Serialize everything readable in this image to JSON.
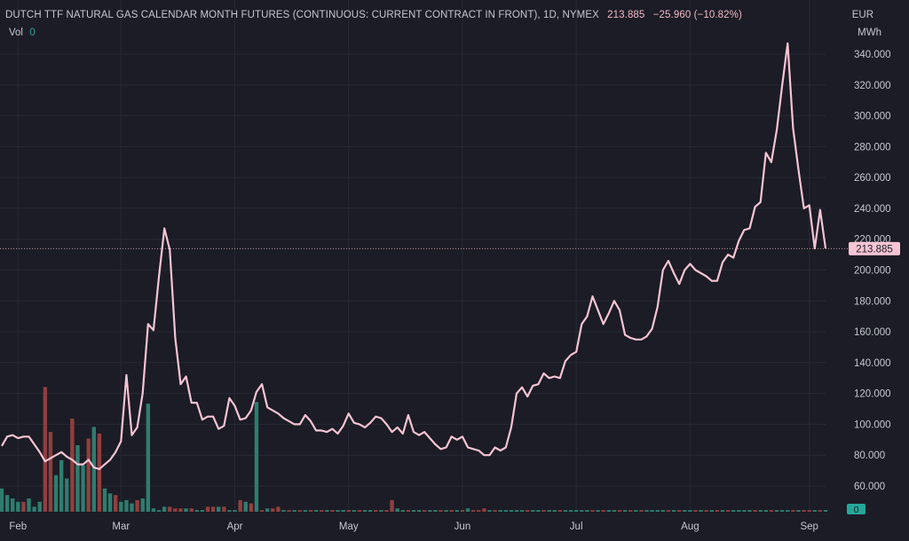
{
  "header": {
    "title": "DUTCH TTF NATURAL GAS CALENDAR MONTH FUTURES (CONTINUOUS: CURRENT CONTRACT IN FRONT), 1D, NYMEX",
    "price": "213.885",
    "change": "−25.960 (−10.82%)",
    "vol_label": "Vol",
    "vol_value": "0"
  },
  "units": {
    "currency": "EUR",
    "energy": "MWh"
  },
  "colors": {
    "background": "#1b1c25",
    "line": "#f7c4d4",
    "volume_up": "#2e7d6f",
    "volume_down": "#8f3f3f",
    "grid": "#262834",
    "price_badge": "#f7c4d4",
    "volume_badge": "#26a69a"
  },
  "chart_data": {
    "type": "line",
    "title": "DUTCH TTF NATURAL GAS CALENDAR MONTH FUTURES (CONTINUOUS: CURRENT CONTRACT IN FRONT), 1D, NYMEX",
    "ylabel": "EUR / MWh",
    "ylim": [
      48,
      352
    ],
    "yticks": [
      60,
      80,
      100,
      120,
      140,
      160,
      180,
      200,
      220,
      240,
      260,
      280,
      300,
      320,
      340
    ],
    "ytick_labels": [
      "60.000",
      "80.000",
      "100.000",
      "120.000",
      "140.000",
      "160.000",
      "180.000",
      "200.000",
      "220.000",
      "240.000",
      "260.000",
      "280.000",
      "300.000",
      "320.000",
      "340.000"
    ],
    "x_axis_labels": [
      "Feb",
      "Mar",
      "Apr",
      "May",
      "Jun",
      "Jul",
      "Aug",
      "Sep"
    ],
    "x_label_positions": [
      3,
      22,
      43,
      64,
      85,
      106,
      127,
      149
    ],
    "last_price": 213.885,
    "last_price_label": "213.885",
    "volume_label": "0",
    "grid": true,
    "series": [
      {
        "values": [
          86,
          92,
          93,
          91,
          92,
          92,
          87,
          82,
          76,
          78,
          80,
          82,
          79,
          77,
          74,
          74,
          77,
          72,
          71,
          74,
          77,
          82,
          89,
          132,
          93,
          98,
          120,
          165,
          161,
          196,
          227,
          213,
          156,
          126,
          131,
          114,
          114,
          103,
          105,
          105,
          97,
          99,
          117,
          112,
          103,
          104,
          109,
          121,
          126,
          111,
          109,
          107,
          104,
          102,
          100,
          100,
          106,
          102,
          96,
          96,
          95,
          97,
          94,
          99,
          107,
          101,
          100,
          98,
          101,
          105,
          104,
          100,
          95,
          98,
          94,
          106,
          95,
          93,
          95,
          91,
          87,
          84,
          85,
          92,
          90,
          92,
          85,
          84,
          83,
          80,
          80,
          85,
          83,
          85,
          98,
          120,
          124,
          118,
          125,
          126,
          133,
          130,
          131,
          130,
          141,
          145,
          147,
          165,
          170,
          183,
          174,
          165,
          172,
          180,
          174,
          158,
          156,
          155,
          155,
          157,
          162,
          176,
          200,
          206,
          198,
          191,
          200,
          204,
          200,
          198,
          196,
          193,
          193,
          205,
          210,
          208,
          219,
          226,
          227,
          241,
          244,
          276,
          270,
          291,
          320,
          347,
          292,
          265,
          240,
          242,
          214,
          239,
          214
        ]
      }
    ],
    "volume": {
      "values": [
        14,
        10,
        8,
        6,
        6,
        8,
        3,
        6,
        75,
        48,
        22,
        31,
        20,
        56,
        40,
        28,
        44,
        51,
        47,
        14,
        11,
        10,
        6,
        7,
        5,
        7,
        8,
        65,
        2,
        1,
        3,
        3,
        2,
        2,
        2,
        2,
        1,
        1,
        3,
        3,
        3,
        3,
        1,
        1,
        7,
        6,
        5,
        66,
        1,
        2,
        2,
        3,
        1,
        1,
        1,
        1,
        1,
        1,
        1,
        1,
        1,
        1,
        1,
        1,
        1,
        1,
        1,
        1,
        1,
        1,
        1,
        1,
        7,
        2,
        1,
        1,
        1,
        1,
        1,
        1,
        1,
        1,
        1,
        1,
        1,
        1,
        2,
        1,
        1,
        2,
        1,
        1,
        1,
        1,
        1,
        1,
        1,
        1,
        1,
        1,
        1,
        1,
        1,
        1,
        1,
        1,
        1,
        1,
        1,
        1,
        1,
        1,
        1,
        1,
        1,
        1,
        1,
        1,
        1,
        1,
        1,
        1,
        1,
        1,
        1,
        1,
        1,
        1,
        1,
        1,
        1,
        1,
        1,
        1,
        1,
        1,
        1,
        1,
        1,
        1,
        1,
        1,
        1,
        1,
        1,
        1,
        1,
        1,
        1,
        1,
        1,
        1,
        1
      ],
      "direction": [
        "up",
        "up",
        "up",
        "up",
        "down",
        "up",
        "up",
        "up",
        "down",
        "down",
        "up",
        "up",
        "up",
        "down",
        "up",
        "up",
        "down",
        "up",
        "down",
        "up",
        "up",
        "down",
        "up",
        "up",
        "up",
        "down",
        "up",
        "up",
        "up",
        "up",
        "up",
        "down",
        "down",
        "down",
        "up",
        "down",
        "up",
        "up",
        "down",
        "down",
        "up",
        "down",
        "up",
        "up",
        "down",
        "up",
        "down",
        "up",
        "down",
        "up",
        "down",
        "down",
        "up",
        "down",
        "up",
        "down",
        "up",
        "down",
        "up",
        "down",
        "up",
        "down",
        "up",
        "up",
        "down",
        "up",
        "down",
        "up",
        "up",
        "down",
        "up",
        "down",
        "down",
        "up",
        "up",
        "down",
        "up",
        "up",
        "down",
        "up",
        "up",
        "down",
        "up",
        "down",
        "up",
        "down",
        "up",
        "down",
        "down",
        "down",
        "up",
        "down",
        "up",
        "up",
        "up",
        "up",
        "up",
        "down",
        "up",
        "up",
        "down",
        "up",
        "up",
        "down",
        "up",
        "up",
        "up",
        "up",
        "up",
        "down",
        "up",
        "down",
        "up",
        "up",
        "down",
        "up",
        "down",
        "up",
        "down",
        "up",
        "up",
        "up",
        "up",
        "down",
        "up",
        "down",
        "up",
        "up",
        "down",
        "up",
        "down",
        "up",
        "down",
        "up",
        "down",
        "up",
        "up",
        "up",
        "up",
        "down",
        "up",
        "up",
        "down",
        "up",
        "up",
        "up",
        "down",
        "up",
        "down",
        "down",
        "up",
        "down",
        "up"
      ]
    }
  }
}
